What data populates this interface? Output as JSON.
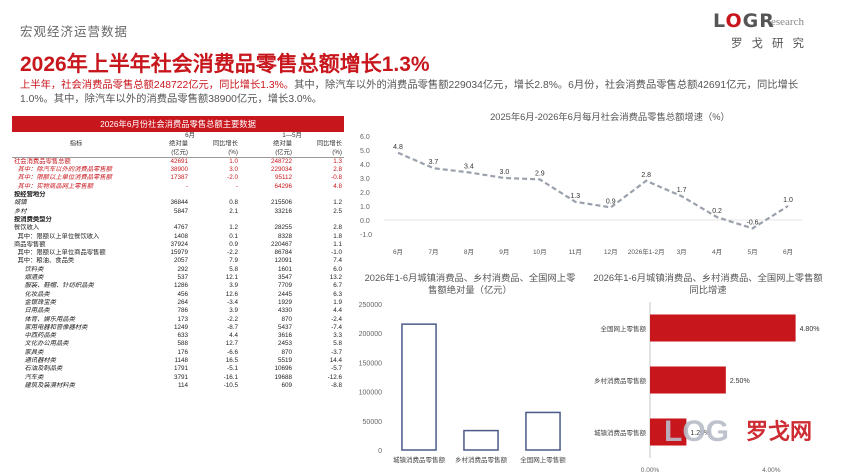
{
  "header": {
    "section_label": "宏观经济运营数据",
    "logo_word": "L O G R",
    "logo_research": "esearch",
    "logo_cn": "罗戈研究",
    "headline": "2026年上半年社会消费品零售总额增长1.3%"
  },
  "summary": {
    "red_part": "上半年，社会消费品零售总额248722亿元，同比增长1.3%。",
    "rest": "其中，除汽车以外的消费品零售额229034亿元，增长2.8%。6月份，社会消费品零售总额42691亿元，同比增长1.0%。其中，除汽车以外的消费品零售额38900亿元，增长3.0%。"
  },
  "table": {
    "title": "2026年6月份社会消费品零售总额主要数据",
    "col_group_1": "6月",
    "col_group_2": "1—5月",
    "col_indicator": "指标",
    "col_abs_1": "绝对量",
    "col_abs_2": "(亿元)",
    "col_yoy_1": "同比增长",
    "col_yoy_2": "(%)",
    "rows": [
      {
        "label": "社会消费品零售总额",
        "v1": "42691",
        "v2": "1.0",
        "v3": "248722",
        "v4": "1.3",
        "style": "red"
      },
      {
        "label": "  其中：除汽车以外的消费品零售额",
        "v1": "38900",
        "v2": "3.0",
        "v3": "229034",
        "v4": "2.8",
        "style": "red italic"
      },
      {
        "label": "  其中：限额以上单位消费品零售额",
        "v1": "17387",
        "v2": "-2.0",
        "v3": "95112",
        "v4": "-0.8",
        "style": "red italic"
      },
      {
        "label": "  其中：实物商品网上零售额",
        "v1": "-",
        "v2": "-",
        "v3": "64296",
        "v4": "4.8",
        "style": "red italic"
      },
      {
        "label": "按经营地分",
        "v1": "",
        "v2": "",
        "v3": "",
        "v4": "",
        "style": "bold"
      },
      {
        "label": "城镇",
        "v1": "36844",
        "v2": "0.8",
        "v3": "215506",
        "v4": "1.2",
        "style": "italic"
      },
      {
        "label": "乡村",
        "v1": "5847",
        "v2": "2.1",
        "v3": "33216",
        "v4": "2.5",
        "style": "italic"
      },
      {
        "label": "按消费类型分",
        "v1": "",
        "v2": "",
        "v3": "",
        "v4": "",
        "style": "bold"
      },
      {
        "label": "餐饮收入",
        "v1": "4767",
        "v2": "1.2",
        "v3": "28255",
        "v4": "2.8",
        "style": ""
      },
      {
        "label": "  其中：限额以上单位餐饮收入",
        "v1": "1408",
        "v2": "0.1",
        "v3": "8328",
        "v4": "1.8",
        "style": ""
      },
      {
        "label": "商品零售额",
        "v1": "37924",
        "v2": "0.9",
        "v3": "220467",
        "v4": "1.1",
        "style": ""
      },
      {
        "label": "  其中：限额以上单位商品零售额",
        "v1": "15979",
        "v2": "-2.2",
        "v3": "86784",
        "v4": "-1.0",
        "style": ""
      },
      {
        "label": "  其中：粮油、食品类",
        "v1": "2057",
        "v2": "7.9",
        "v3": "12091",
        "v4": "7.4",
        "style": ""
      },
      {
        "label": "      饮料类",
        "v1": "292",
        "v2": "5.8",
        "v3": "1601",
        "v4": "6.0",
        "style": "italic"
      },
      {
        "label": "      烟酒类",
        "v1": "537",
        "v2": "12.1",
        "v3": "3547",
        "v4": "13.2",
        "style": "italic"
      },
      {
        "label": "      服装、鞋帽、针纺织品类",
        "v1": "1286",
        "v2": "3.9",
        "v3": "7709",
        "v4": "6.7",
        "style": "italic"
      },
      {
        "label": "      化妆品类",
        "v1": "456",
        "v2": "12.6",
        "v3": "2445",
        "v4": "6.3",
        "style": "italic"
      },
      {
        "label": "      金银珠宝类",
        "v1": "264",
        "v2": "-3.4",
        "v3": "1929",
        "v4": "1.9",
        "style": "italic"
      },
      {
        "label": "      日用品类",
        "v1": "786",
        "v2": "3.9",
        "v3": "4330",
        "v4": "4.4",
        "style": "italic"
      },
      {
        "label": "      体育、娱乐用品类",
        "v1": "173",
        "v2": "-2.2",
        "v3": "870",
        "v4": "-2.4",
        "style": "italic"
      },
      {
        "label": "      家用电器和音像器材类",
        "v1": "1249",
        "v2": "-8.7",
        "v3": "5437",
        "v4": "-7.4",
        "style": "italic"
      },
      {
        "label": "      中西药品类",
        "v1": "633",
        "v2": "4.4",
        "v3": "3616",
        "v4": "3.3",
        "style": "italic"
      },
      {
        "label": "      文化办公用品类",
        "v1": "588",
        "v2": "12.7",
        "v3": "2453",
        "v4": "5.8",
        "style": "italic"
      },
      {
        "label": "      家具类",
        "v1": "176",
        "v2": "-6.6",
        "v3": "870",
        "v4": "-3.7",
        "style": "italic"
      },
      {
        "label": "      通讯器材类",
        "v1": "1148",
        "v2": "16.5",
        "v3": "5519",
        "v4": "14.4",
        "style": "italic"
      },
      {
        "label": "      石油及制品类",
        "v1": "1791",
        "v2": "-5.1",
        "v3": "10696",
        "v4": "-5.7",
        "style": "italic"
      },
      {
        "label": "      汽车类",
        "v1": "3791",
        "v2": "-16.1",
        "v3": "19688",
        "v4": "-12.6",
        "style": "italic"
      },
      {
        "label": "      建筑及装潢材料类",
        "v1": "114",
        "v2": "-10.5",
        "v3": "609",
        "v4": "-8.8",
        "style": "italic"
      }
    ]
  },
  "watermark": {
    "word": "LOG",
    "cn": "罗戈网"
  },
  "colors": {
    "accent": "#c8161d",
    "line": "#9aa0ac",
    "bar_outline": "#4a5a8a"
  },
  "chart_data": [
    {
      "type": "line",
      "title": "2025年6月-2026年6月每月社会消费品零售总额增速（%）",
      "categories": [
        "6月",
        "7月",
        "8月",
        "9月",
        "10月",
        "11月",
        "12月",
        "2026年1-2月",
        "3月",
        "4月",
        "5月",
        "6月"
      ],
      "values": [
        4.8,
        3.7,
        3.4,
        3.0,
        2.9,
        1.3,
        0.9,
        2.8,
        1.7,
        0.2,
        -0.6,
        1.0
      ],
      "y_ticks": [
        "6.0",
        "5.0",
        "4.0",
        "3.0",
        "2.0",
        "1.0",
        "0.0",
        "-1.0"
      ],
      "ylim": [
        -1,
        6
      ],
      "data_labels": [
        "4.8",
        "3.7",
        "3.4",
        "3.0",
        "2.9",
        "1.3",
        "0.9",
        "2.8",
        "1.7",
        "0.2",
        "-0.6",
        "1.0"
      ]
    },
    {
      "type": "bar",
      "title": "2026年1-6月城镇消费品、乡村消费品、全国网上零售额绝对量（亿元）",
      "categories": [
        "城镇消费品零售额",
        "乡村消费品零售额",
        "全国网上零售额"
      ],
      "values": [
        215506,
        33216,
        64296
      ],
      "y_ticks": [
        "250000",
        "200000",
        "150000",
        "100000",
        "50000",
        "0"
      ],
      "ylim": [
        0,
        250000
      ]
    },
    {
      "type": "bar",
      "orientation": "horizontal",
      "title": "2026年1-6月城镇消费品、乡村消费品、全国网上零售额同比增速",
      "categories": [
        "全国网上零售额",
        "乡村消费品零售额",
        "城镇消费品零售额"
      ],
      "values": [
        4.8,
        2.5,
        1.2
      ],
      "data_labels": [
        "4.80%",
        "2.50%",
        "1.20%"
      ],
      "x_ticks": [
        "0.00%",
        "4.00%"
      ],
      "xlim": [
        0,
        6
      ]
    }
  ]
}
